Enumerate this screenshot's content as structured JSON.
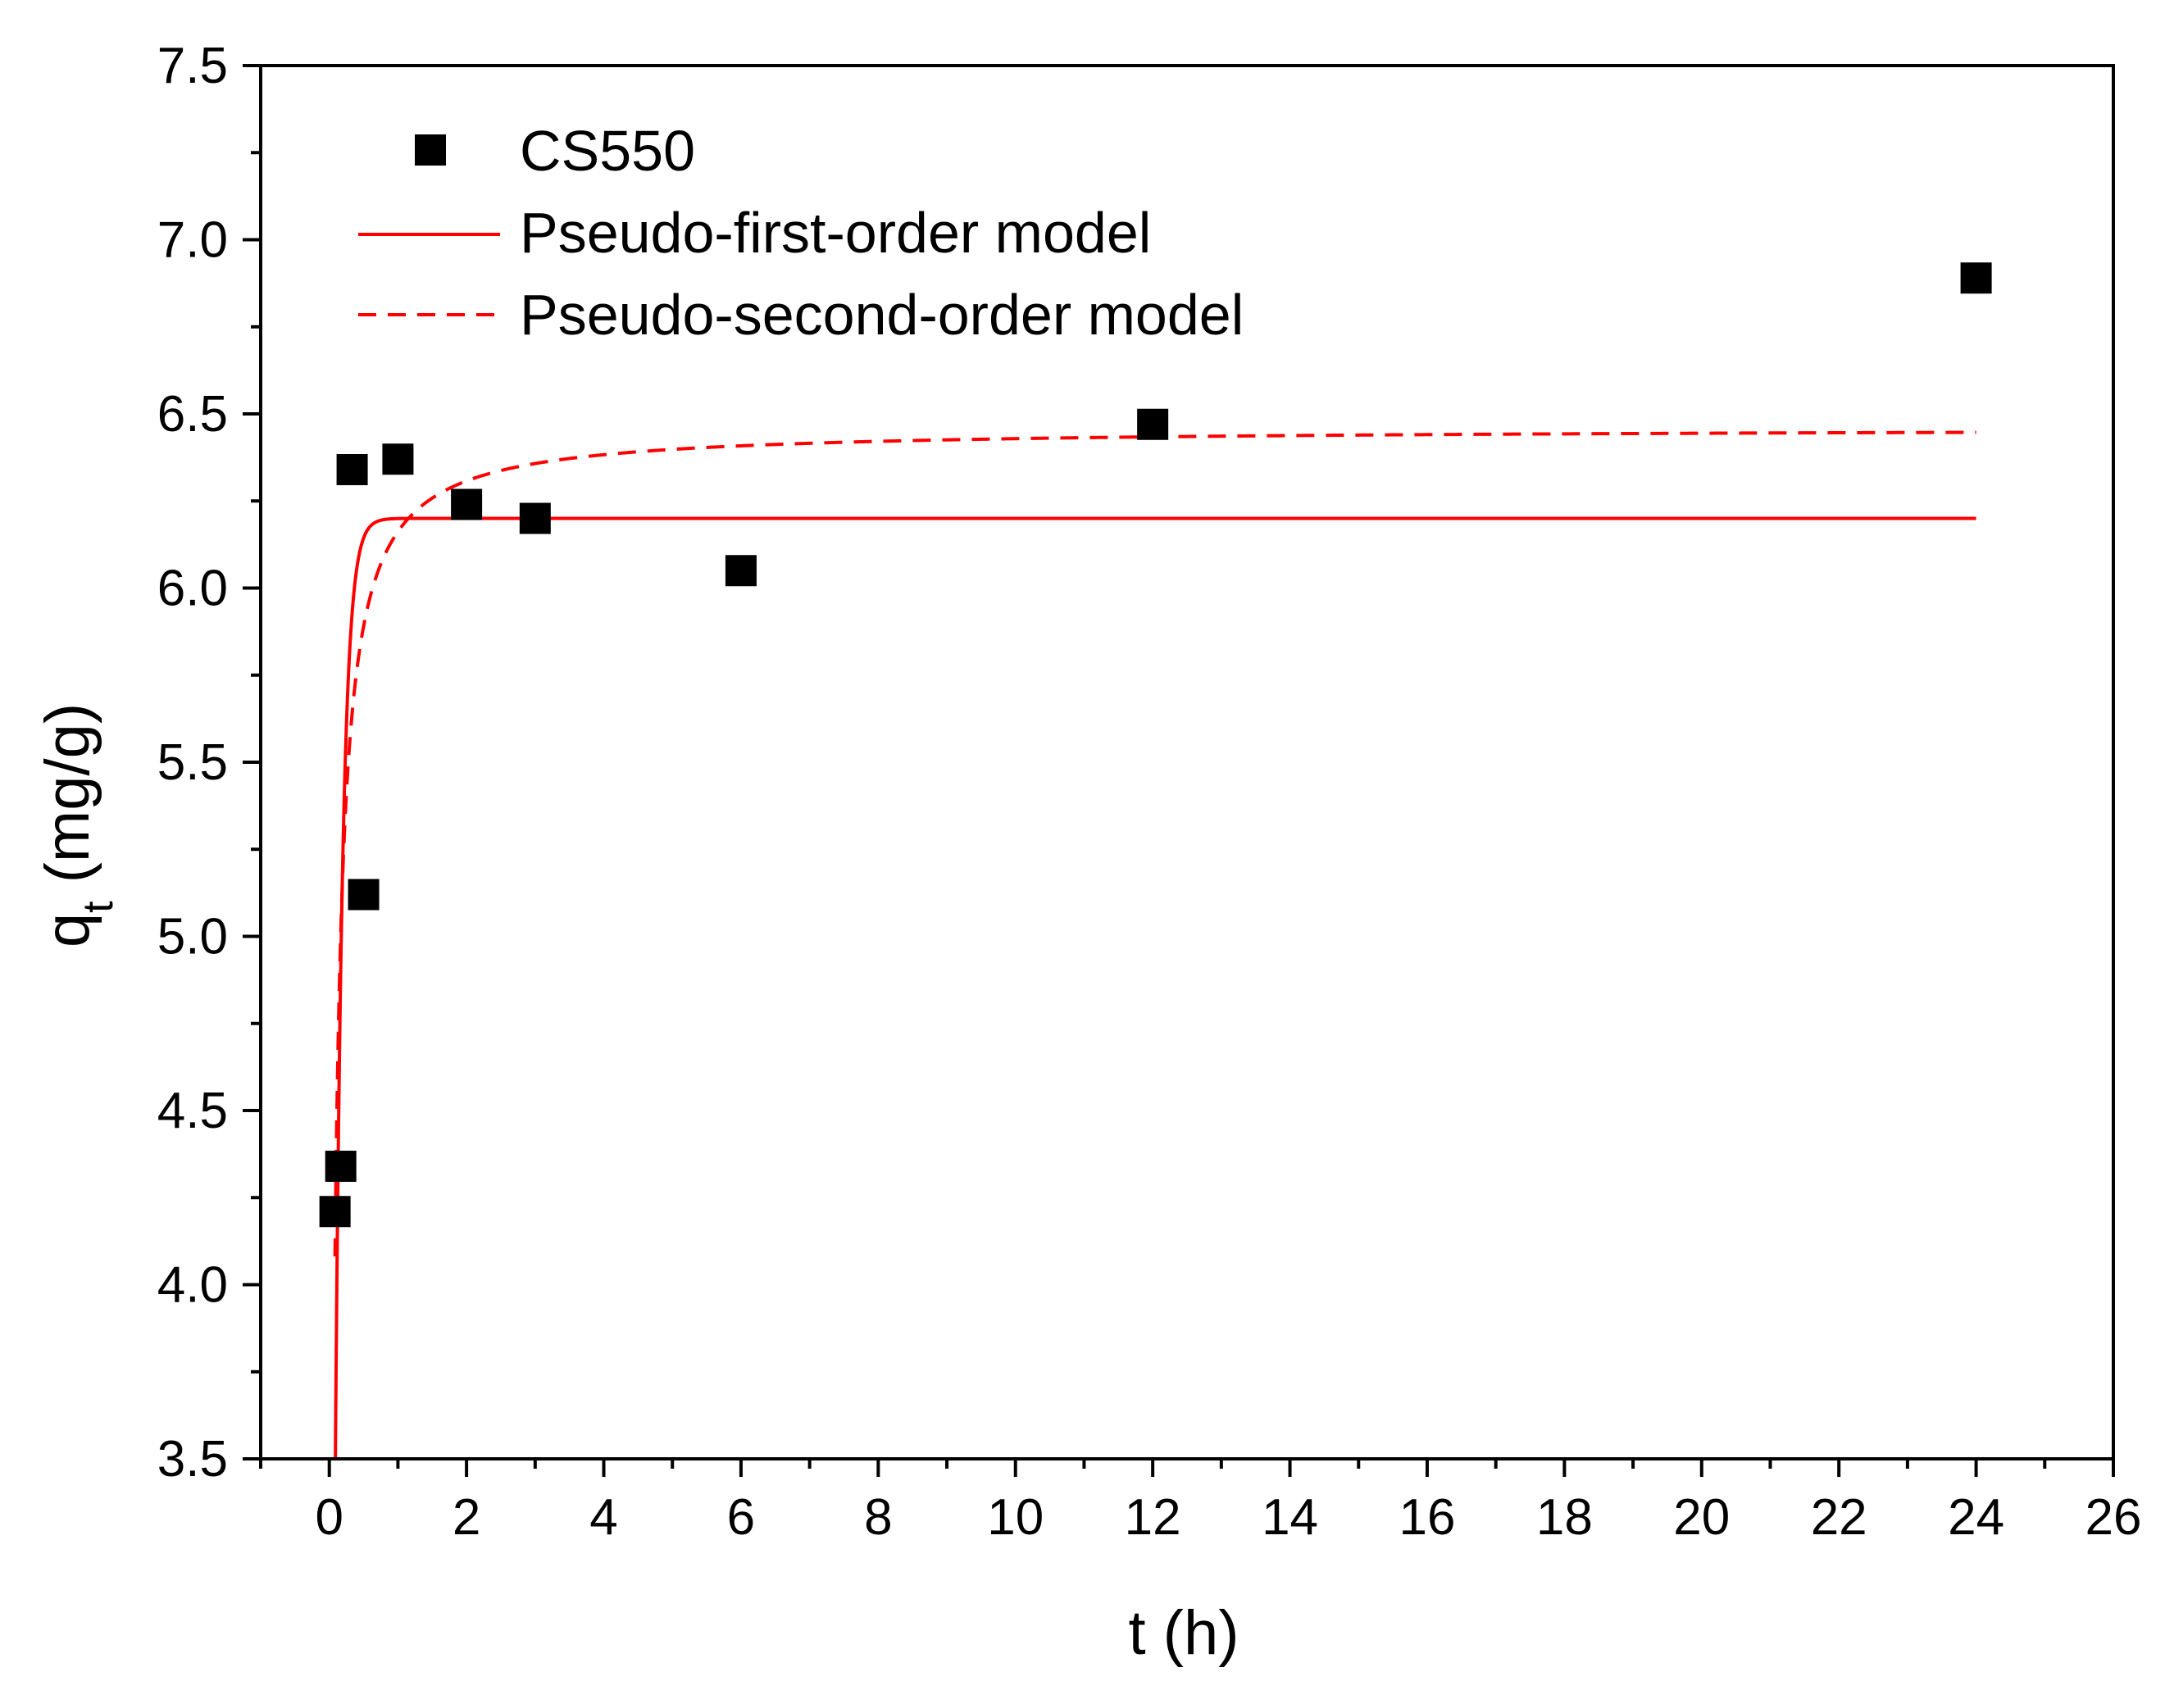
{
  "chart_data": {
    "type": "scatter",
    "title": "",
    "xlabel": "t (h)",
    "ylabel_main": "q",
    "ylabel_sub": "t",
    "ylabel_unit": "(mg/g)",
    "xlim": [
      -1,
      26
    ],
    "ylim": [
      3.5,
      7.5
    ],
    "x_ticks": [
      0,
      2,
      4,
      6,
      8,
      10,
      12,
      14,
      16,
      18,
      20,
      22,
      24,
      26
    ],
    "x_tick_labels": [
      "0",
      "2",
      "4",
      "6",
      "8",
      "10",
      "12",
      "14",
      "16",
      "18",
      "20",
      "22",
      "24",
      "26"
    ],
    "y_ticks": [
      3.5,
      4.0,
      4.5,
      5.0,
      5.5,
      6.0,
      6.5,
      7.0,
      7.5
    ],
    "y_tick_labels": [
      "3.5",
      "4.0",
      "4.5",
      "5.0",
      "5.5",
      "6.0",
      "6.5",
      "7.0",
      "7.5"
    ],
    "grid": false,
    "legend_position": "top-left",
    "series": [
      {
        "name": "CS550",
        "kind": "scatter",
        "marker": "square",
        "color": "#000000",
        "x": [
          0.083,
          0.167,
          0.333,
          0.5,
          1,
          2,
          3,
          6,
          12,
          24
        ],
        "y": [
          4.21,
          4.34,
          6.34,
          5.12,
          6.37,
          6.24,
          6.2,
          6.05,
          6.47,
          6.89
        ]
      },
      {
        "name": "Pseudo-first-order model",
        "kind": "line",
        "dash": "solid",
        "color": "#ff0000",
        "model": {
          "qe": 6.2,
          "k1": 9.4
        },
        "x_range": [
          0.083,
          24
        ]
      },
      {
        "name": "Pseudo-second-order model",
        "kind": "line",
        "dash": "dashed",
        "color": "#ff0000",
        "model": {
          "qe": 6.46,
          "k2": 3.2
        },
        "x_range": [
          0.083,
          24
        ]
      }
    ]
  }
}
